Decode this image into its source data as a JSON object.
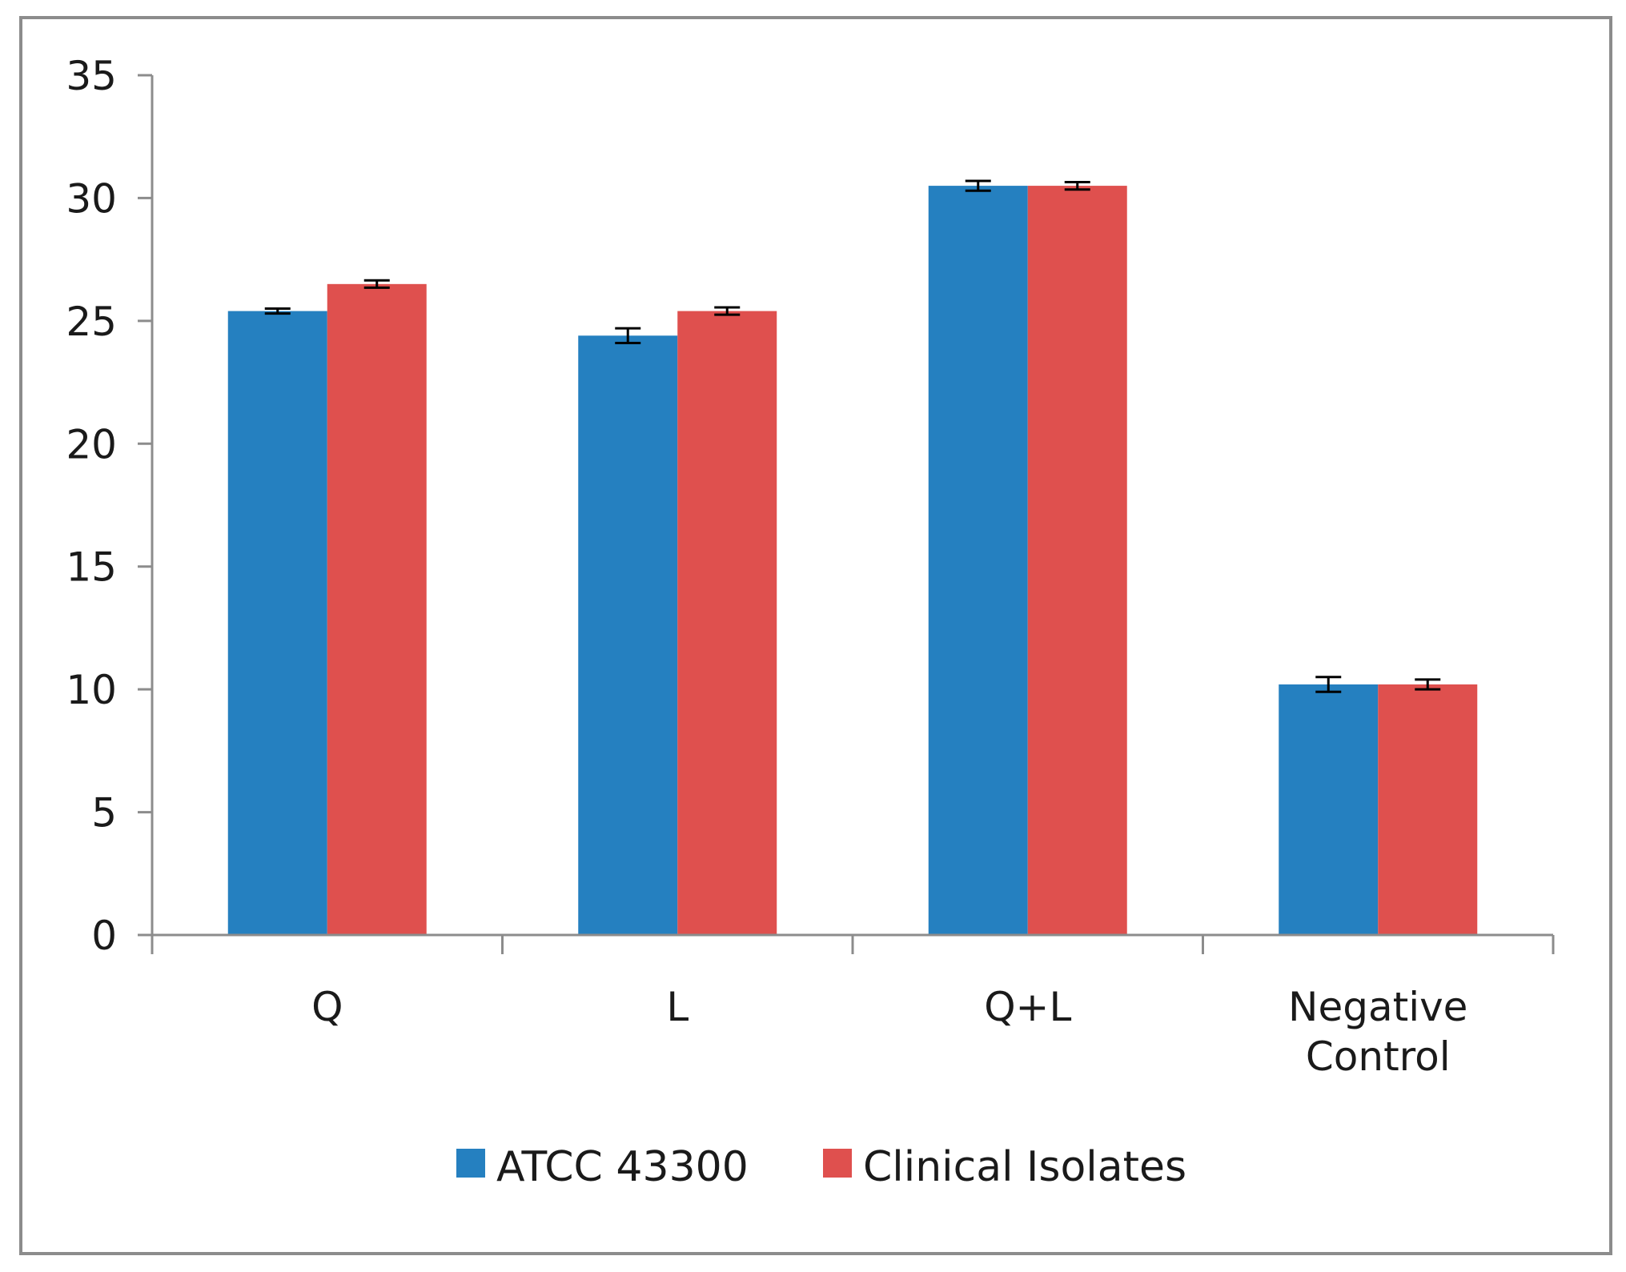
{
  "chart_data": {
    "type": "bar",
    "title": "",
    "xlabel": "",
    "ylabel": "",
    "ylim": [
      0,
      35
    ],
    "yticks": [
      0,
      5,
      10,
      15,
      20,
      25,
      30,
      35
    ],
    "categories": [
      [
        "Q"
      ],
      [
        "L"
      ],
      [
        "Q+L"
      ],
      [
        "Negative",
        "Control"
      ]
    ],
    "series": [
      {
        "name": "ATCC 43300",
        "color": "#2580c0",
        "values": [
          25.4,
          24.4,
          30.5,
          10.2
        ],
        "errors": [
          0.1,
          0.3,
          0.2,
          0.3
        ]
      },
      {
        "name": "Clinical Isolates",
        "color": "#df504e",
        "values": [
          26.5,
          25.4,
          30.5,
          10.2
        ],
        "errors": [
          0.15,
          0.15,
          0.15,
          0.2
        ]
      }
    ],
    "legend_position": "bottom",
    "grid": false
  }
}
